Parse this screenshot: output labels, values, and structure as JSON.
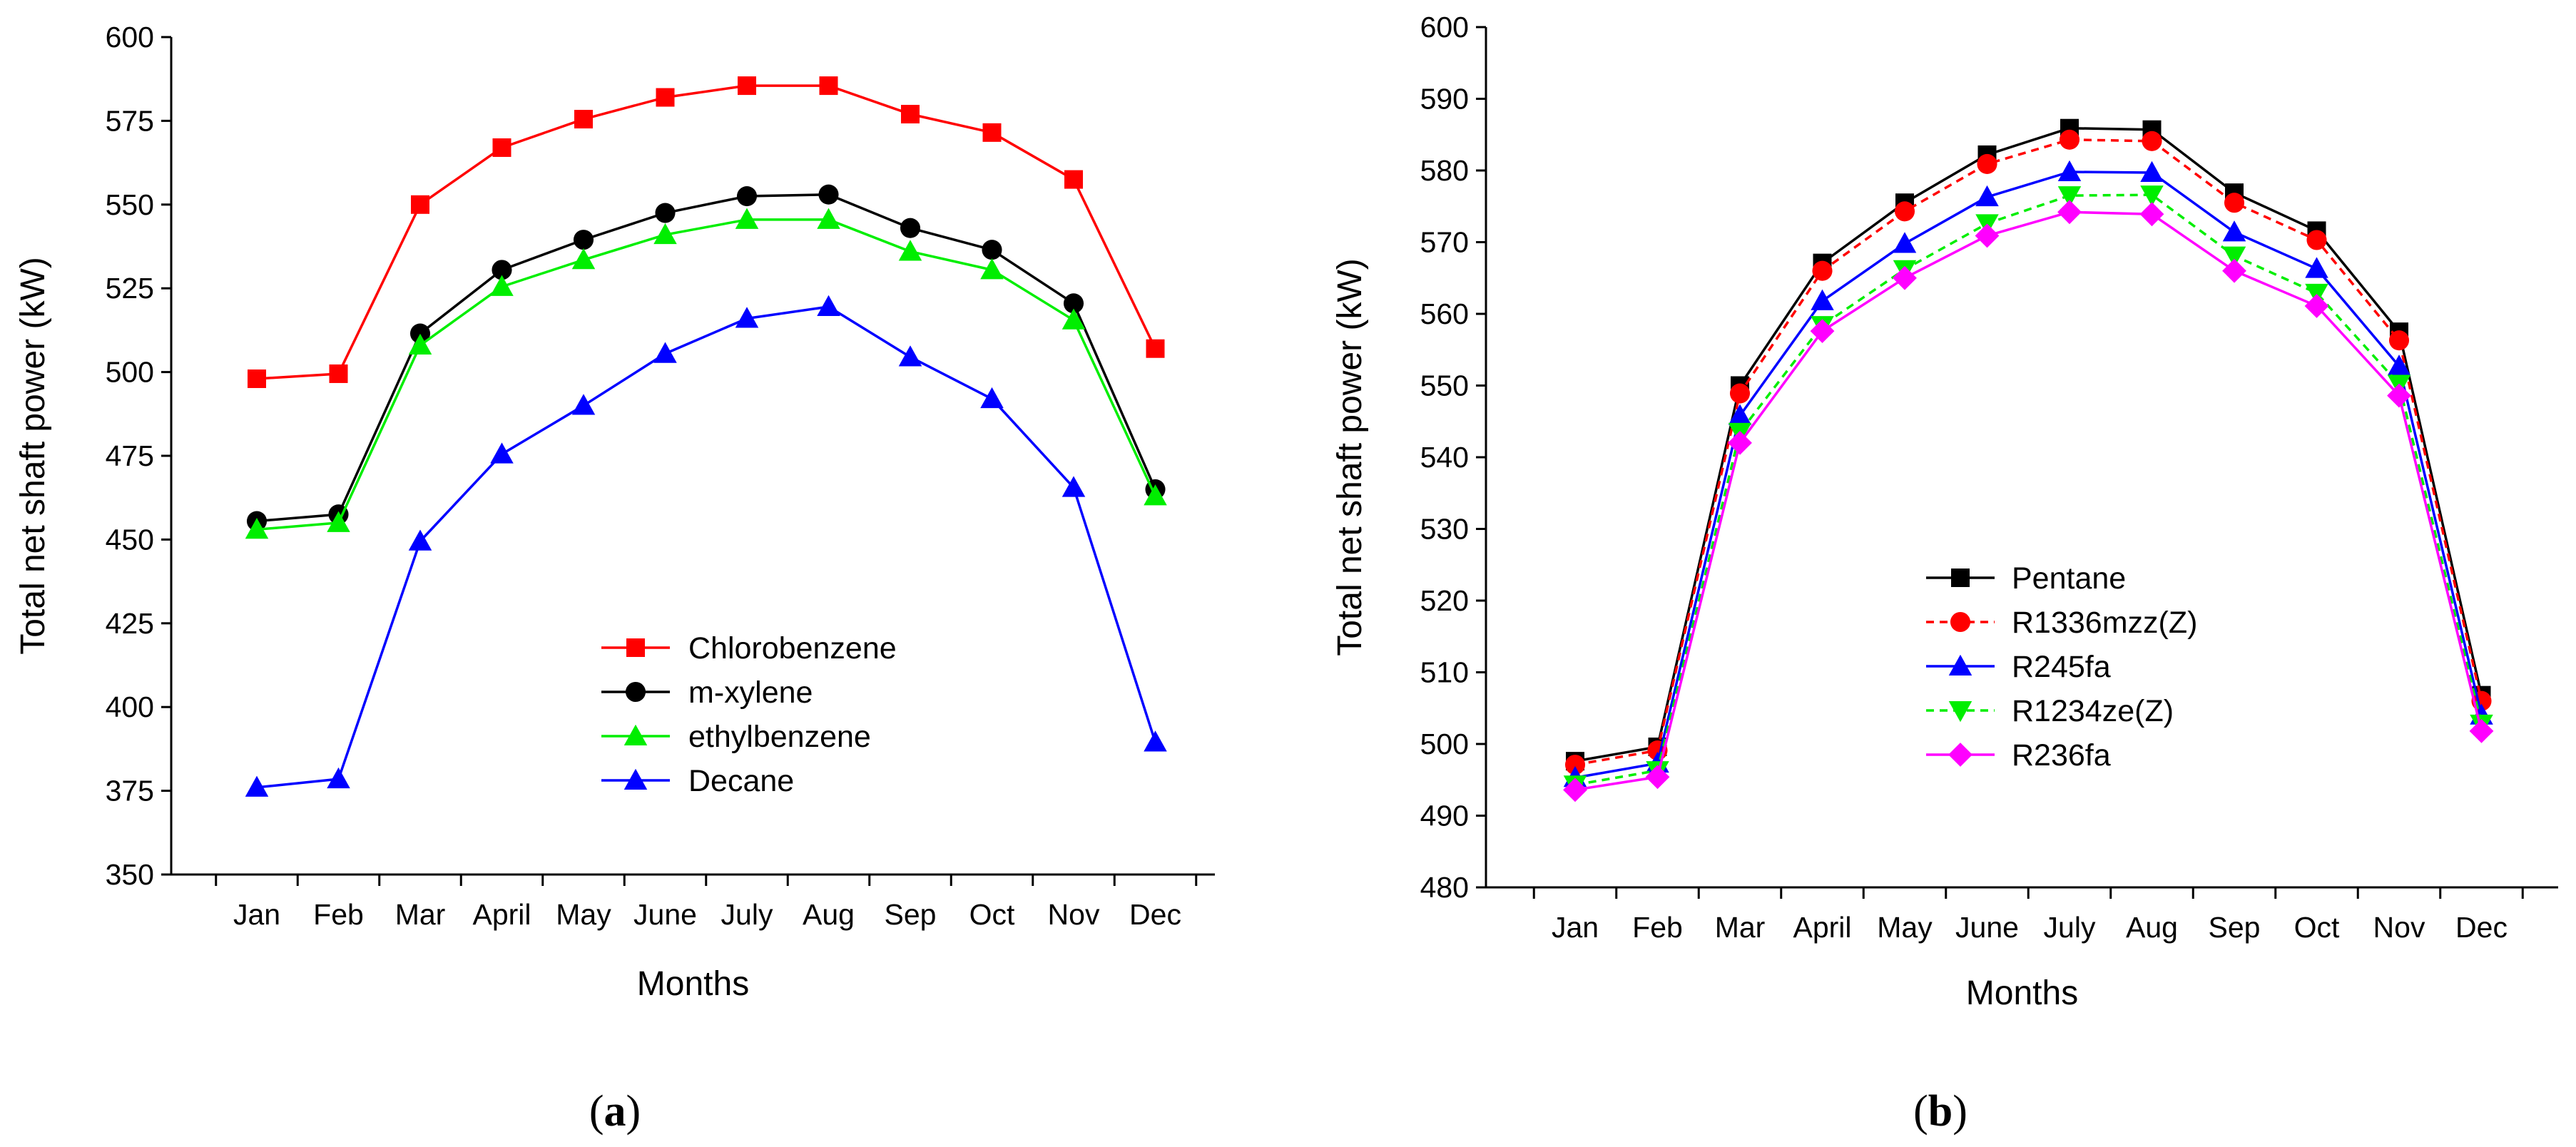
{
  "chart_data": [
    {
      "type": "line",
      "panel_label": "a",
      "caption_open": "(",
      "caption_close": ")",
      "categories": [
        "Jan",
        "Feb",
        "Mar",
        "April",
        "May",
        "June",
        "July",
        "Aug",
        "Sep",
        "Oct",
        "Nov",
        "Dec"
      ],
      "xlabel": "Months",
      "ylabel": "Total net shaft power (kW)",
      "ylim": [
        350,
        600
      ],
      "yticks": [
        350,
        375,
        400,
        425,
        450,
        475,
        500,
        525,
        550,
        575,
        600
      ],
      "legend_position": "bottom-center",
      "series": [
        {
          "name": "Chlorobenzene",
          "color": "#ff0000",
          "marker": "square",
          "dash": "solid",
          "values": [
            498,
            499.5,
            550,
            567,
            575.5,
            582,
            585.5,
            585.5,
            577,
            571.5,
            557.5,
            507
          ]
        },
        {
          "name": "m-xylene",
          "color": "#000000",
          "marker": "circle",
          "dash": "solid",
          "values": [
            455.5,
            457.5,
            511.5,
            530.5,
            539.5,
            547.5,
            552.5,
            553,
            543,
            536.5,
            520.5,
            465
          ]
        },
        {
          "name": "ethylbenzene",
          "color": "#00ee00",
          "marker": "triangle-up",
          "dash": "solid",
          "values": [
            453,
            455,
            508,
            525.5,
            533.5,
            541,
            545.5,
            545.5,
            536,
            530.5,
            515.5,
            463
          ]
        },
        {
          "name": "Decane",
          "color": "#0000ff",
          "marker": "triangle-up",
          "dash": "solid",
          "values": [
            376,
            378.5,
            449.5,
            475.5,
            490,
            505.5,
            516,
            519.5,
            504.5,
            492,
            465.5,
            389.5
          ]
        }
      ]
    },
    {
      "type": "line",
      "panel_label": "b",
      "caption_open": "(",
      "caption_close": ")",
      "categories": [
        "Jan",
        "Feb",
        "Mar",
        "April",
        "May",
        "June",
        "July",
        "Aug",
        "Sep",
        "Oct",
        "Nov",
        "Dec"
      ],
      "xlabel": "Months",
      "ylabel": "Total net shaft power (kW)",
      "ylim": [
        480,
        600
      ],
      "yticks": [
        480,
        490,
        500,
        510,
        520,
        530,
        540,
        550,
        560,
        570,
        580,
        590,
        600
      ],
      "legend_position": "center",
      "series": [
        {
          "name": "Pentane",
          "color": "#000000",
          "marker": "square",
          "dash": "solid",
          "values": [
            497.6,
            499.6,
            550,
            567.1,
            575.5,
            582.2,
            585.9,
            585.7,
            576.9,
            571.6,
            557.5,
            506.8
          ]
        },
        {
          "name": "R1336mzz(Z)",
          "color": "#ff0000",
          "marker": "circle",
          "dash": "dashed",
          "values": [
            497.1,
            499.1,
            548.9,
            566,
            574.3,
            580.9,
            584.3,
            584.1,
            575.5,
            570.3,
            556.3,
            506
          ]
        },
        {
          "name": "R245fa",
          "color": "#0000ff",
          "marker": "triangle-up",
          "dash": "solid",
          "values": [
            495.3,
            497.3,
            545.8,
            561.8,
            569.8,
            576.3,
            579.8,
            579.7,
            571.4,
            566.3,
            552.7,
            504
          ]
        },
        {
          "name": "R1234ze(Z)",
          "color": "#00ee00",
          "marker": "triangle-down",
          "dash": "dashed",
          "values": [
            494.3,
            496.3,
            543.5,
            558.4,
            566.2,
            572.6,
            576.5,
            576.6,
            568.1,
            562.9,
            550.2,
            502.8
          ]
        },
        {
          "name": "R236fa",
          "color": "#ff00ff",
          "marker": "diamond",
          "dash": "solid",
          "values": [
            493.6,
            495.4,
            542,
            557.6,
            565,
            570.9,
            574.2,
            573.9,
            566,
            561.1,
            548.6,
            501.8
          ]
        }
      ]
    }
  ]
}
